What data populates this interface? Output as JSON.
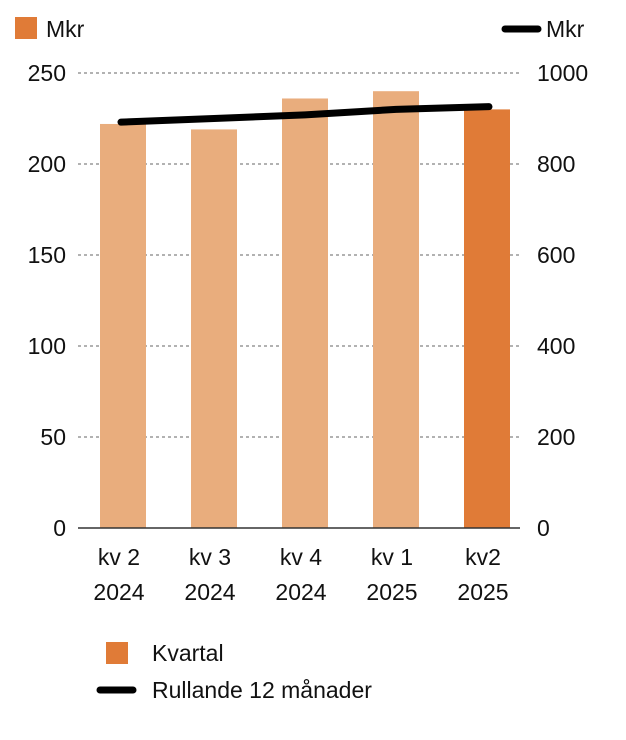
{
  "chart_data": {
    "type": "bar",
    "left_unit": "Mkr",
    "right_unit": "Mkr",
    "categories": [
      {
        "line1": "kv 2",
        "line2": "2024"
      },
      {
        "line1": "kv 3",
        "line2": "2024"
      },
      {
        "line1": "kv 4",
        "line2": "2024"
      },
      {
        "line1": "kv 1",
        "line2": "2025"
      },
      {
        "line1": "kv2",
        "line2": "2025"
      }
    ],
    "series": [
      {
        "name": "Kvartal",
        "axis": "left",
        "values": [
          222,
          219,
          236,
          240,
          230
        ],
        "color": "#e9ad7d",
        "highlight_color": "#e07b37",
        "highlight_index": 4
      },
      {
        "name": "Rullande 12 månader",
        "axis": "right",
        "values": [
          892,
          900,
          908,
          920,
          926
        ],
        "color": "#000000"
      }
    ],
    "y_left": {
      "min": 0,
      "max": 250,
      "ticks": [
        0,
        50,
        100,
        150,
        200,
        250
      ]
    },
    "y_right": {
      "min": 0,
      "max": 1000,
      "ticks": [
        0,
        200,
        400,
        600,
        800,
        1000
      ]
    },
    "grid": "dashed",
    "legend_position": "bottom"
  }
}
